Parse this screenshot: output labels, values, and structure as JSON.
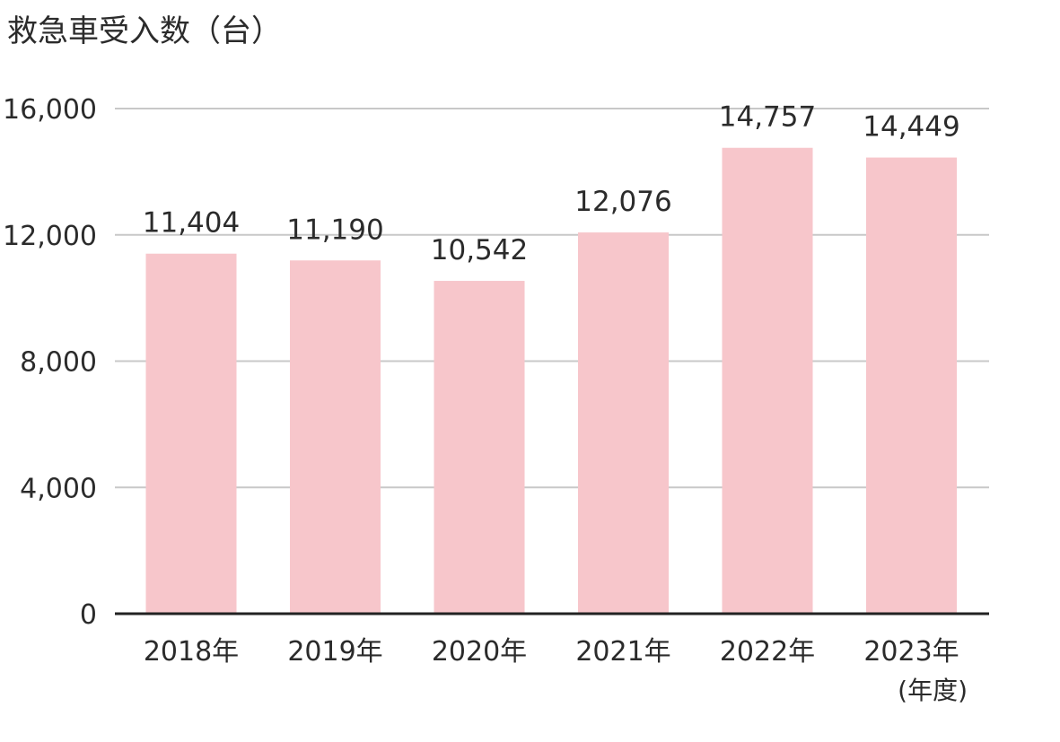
{
  "chart_data": {
    "type": "bar",
    "title": "救急車受入数（台）",
    "x_unit_label": "(年度)",
    "categories": [
      "2018年",
      "2019年",
      "2020年",
      "2021年",
      "2022年",
      "2023年"
    ],
    "values": [
      11404,
      11190,
      10542,
      12076,
      14757,
      14449
    ],
    "data_labels": [
      "11,404",
      "11,190",
      "10,542",
      "12,076",
      "14,757",
      "14,449"
    ],
    "yticks": [
      0,
      4000,
      8000,
      12000,
      16000
    ],
    "ytick_labels": [
      "0",
      "4,000",
      "8,000",
      "12,000",
      "16,000"
    ],
    "ylim": [
      0,
      16000
    ],
    "grid": true,
    "colors": {
      "bar": "#f7c6cb",
      "grid": "#c8c8c8",
      "axis": "#222222",
      "text": "#2b2b2b"
    }
  }
}
